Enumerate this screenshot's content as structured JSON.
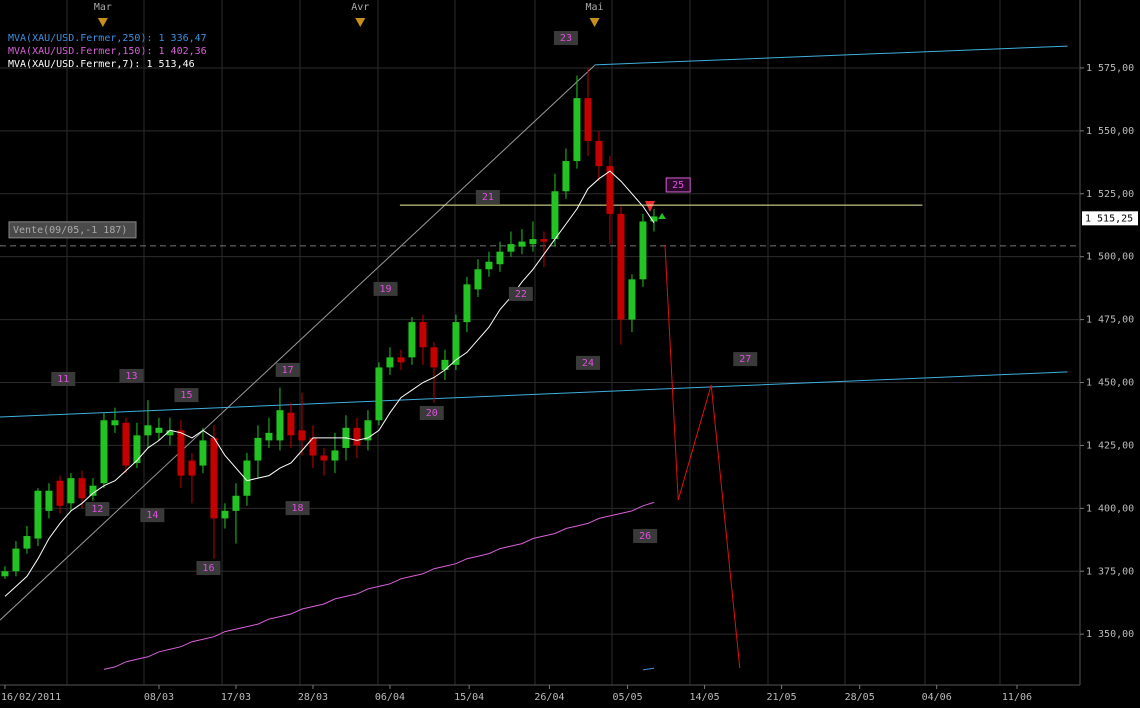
{
  "chart_data": {
    "type": "candlestick",
    "xlim": [
      -0.45,
      97.73
    ],
    "ylim": [
      1329.8,
      1602
    ],
    "yticks": [
      {
        "value": 1350,
        "label": "1 350,00"
      },
      {
        "value": 1375,
        "label": "1 375,00"
      },
      {
        "value": 1400,
        "label": "1 400,00"
      },
      {
        "value": 1425,
        "label": "1 425,00"
      },
      {
        "value": 1450,
        "label": "1 450,00"
      },
      {
        "value": 1475,
        "label": "1 475,00"
      },
      {
        "value": 1500,
        "label": "1 500,00"
      },
      {
        "value": 1525,
        "label": "1 525,00"
      },
      {
        "value": 1550,
        "label": "1 550,00"
      },
      {
        "value": 1575,
        "label": "1 575,00"
      }
    ],
    "xticks": [
      {
        "value": 0,
        "label": "16/02/2011"
      },
      {
        "value": 14,
        "label": "08/03"
      },
      {
        "value": 21,
        "label": "17/03"
      },
      {
        "value": 28,
        "label": "28/03"
      },
      {
        "value": 35,
        "label": "06/04"
      },
      {
        "value": 42.2,
        "label": "15/04"
      },
      {
        "value": 49.5,
        "label": "26/04"
      },
      {
        "value": 56.6,
        "label": "05/05"
      },
      {
        "value": 63.6,
        "label": "14/05"
      },
      {
        "value": 70.6,
        "label": "21/05"
      },
      {
        "value": 77.7,
        "label": "28/05"
      },
      {
        "value": 84.7,
        "label": "04/06"
      },
      {
        "value": 92,
        "label": "11/06"
      }
    ],
    "grid": true,
    "up_color": "#22c322",
    "down_color": "#c40000",
    "candles": {
      "open": [
        1373,
        1375,
        1384,
        1388,
        1399,
        1411,
        1402,
        1412,
        1405,
        1410,
        1433,
        1434,
        1418,
        1429,
        1430,
        1429,
        1431,
        1419,
        1417,
        1428,
        1396,
        1399,
        1405,
        1419,
        1427,
        1427,
        1438,
        1431,
        1428,
        1421,
        1419,
        1424,
        1432,
        1427,
        1435,
        1456,
        1460,
        1460,
        1474,
        1464,
        1455,
        1457,
        1474,
        1487,
        1495,
        1497,
        1502,
        1504,
        1505,
        1507,
        1507,
        1526,
        1538,
        1563,
        1546,
        1536,
        1517,
        1475,
        1491,
        1514
      ],
      "high": [
        1377,
        1387,
        1393,
        1408,
        1410,
        1413,
        1414,
        1415,
        1412,
        1438,
        1440,
        1436,
        1434,
        1443,
        1436,
        1436,
        1435,
        1422,
        1432,
        1433,
        1402,
        1410,
        1422,
        1433,
        1436,
        1448,
        1442,
        1446,
        1433,
        1424,
        1430,
        1437,
        1436,
        1439,
        1458,
        1464,
        1463,
        1476,
        1477,
        1466,
        1463,
        1477,
        1492,
        1499,
        1502,
        1506,
        1510,
        1511,
        1514,
        1510,
        1533,
        1543,
        1572,
        1575,
        1550,
        1540,
        1520,
        1493,
        1517,
        1519
      ],
      "low": [
        1372,
        1373,
        1382,
        1385,
        1396,
        1398,
        1399,
        1400,
        1403,
        1408,
        1430,
        1414,
        1416,
        1424,
        1427,
        1425,
        1408,
        1402,
        1414,
        1380,
        1392,
        1386,
        1401,
        1412,
        1424,
        1423,
        1424,
        1421,
        1416,
        1413,
        1414,
        1419,
        1420,
        1423,
        1433,
        1453,
        1455,
        1457,
        1457,
        1442,
        1451,
        1455,
        1470,
        1484,
        1492,
        1494,
        1500,
        1501,
        1502,
        1496,
        1504,
        1523,
        1535,
        1540,
        1530,
        1505,
        1465,
        1470,
        1488,
        1510
      ],
      "close": [
        1375,
        1384,
        1389,
        1407,
        1407,
        1401,
        1412,
        1404,
        1409,
        1435,
        1435,
        1417,
        1429,
        1433,
        1432,
        1431,
        1413,
        1413,
        1427,
        1396,
        1399,
        1405,
        1419,
        1428,
        1430,
        1439,
        1429,
        1427,
        1421,
        1419,
        1423,
        1432,
        1425,
        1435,
        1456,
        1460,
        1458,
        1474,
        1464,
        1456,
        1459,
        1474,
        1489,
        1495,
        1498,
        1502,
        1505,
        1506,
        1507,
        1506,
        1526,
        1538,
        1563,
        1546,
        1536,
        1517,
        1475,
        1491,
        1514,
        1516
      ]
    },
    "series": [
      {
        "name": "MVA(XAU/USD.Fermer,250): 1 336,47",
        "color": "#3d8fe0",
        "values": [
          null,
          null,
          null,
          null,
          null,
          null,
          null,
          null,
          null,
          null,
          null,
          null,
          null,
          null,
          null,
          null,
          null,
          null,
          null,
          null,
          null,
          null,
          null,
          null,
          null,
          null,
          null,
          null,
          null,
          null,
          null,
          null,
          null,
          null,
          null,
          null,
          null,
          null,
          null,
          null,
          null,
          null,
          null,
          null,
          null,
          null,
          null,
          null,
          null,
          null,
          null,
          null,
          null,
          null,
          null,
          null,
          null,
          null,
          1335.8,
          1336.47
        ]
      },
      {
        "name": "MVA(XAU/USD.Fermer,150): 1 402,36",
        "color": "#d860d8",
        "values": [
          null,
          null,
          null,
          null,
          null,
          null,
          null,
          null,
          null,
          1336,
          1337,
          1339,
          1340,
          1341,
          1343,
          1344,
          1345,
          1347,
          1348,
          1349,
          1351,
          1352,
          1353,
          1354,
          1356,
          1357,
          1358,
          1360,
          1361,
          1362,
          1364,
          1365,
          1366,
          1368,
          1369,
          1370,
          1372,
          1373,
          1374,
          1376,
          1377,
          1378,
          1380,
          1381,
          1382,
          1384,
          1385,
          1386,
          1388,
          1389,
          1390,
          1392,
          1393,
          1394,
          1396,
          1397,
          1398,
          1399,
          1401,
          1402.36
        ]
      },
      {
        "name": "MVA(XAU/USD.Fermer,7): 1 513,46",
        "color": "#ffffff",
        "values": [
          1365,
          1369,
          1373,
          1380,
          1388,
          1394,
          1399,
          1402,
          1406,
          1409,
          1411,
          1415,
          1419,
          1424,
          1427,
          1431,
          1430,
          1428,
          1431,
          1428,
          1421,
          1416,
          1411,
          1412,
          1413,
          1416,
          1418,
          1423,
          1428,
          1428,
          1428,
          1428,
          1427,
          1428,
          1431,
          1438,
          1444,
          1447,
          1450,
          1452,
          1455,
          1459,
          1462,
          1467,
          1472,
          1479,
          1484,
          1490,
          1495,
          1501,
          1507,
          1513,
          1519,
          1527,
          1531,
          1534,
          1530,
          1525,
          1520,
          1513.46
        ]
      }
    ],
    "trend_lines": [
      {
        "color": "#3fb0e0",
        "x": [
          53.6,
          96.6
        ],
        "values": [
          1576.2,
          1583.7
        ]
      },
      {
        "color": "#3fb0e0",
        "x": [
          -0.45,
          96.6
        ],
        "values": [
          1436.3,
          1454.2
        ]
      },
      {
        "color": "#9a9a9a",
        "x": [
          -0.45,
          53.6
        ],
        "values": [
          1355.6,
          1576
        ]
      },
      {
        "color": "#f0f0a0",
        "x": [
          35.9,
          83.4
        ],
        "values": [
          1520.5,
          1520.5
        ]
      },
      {
        "color": "#777777",
        "dashed": true,
        "x": [
          -0.45,
          97.73
        ],
        "values": [
          1504.3,
          1504.3
        ]
      },
      {
        "color": "#e01010",
        "x": [
          60,
          61.2,
          64.2,
          66.8
        ],
        "values": [
          1504.6,
          1403.3,
          1449,
          1336.5
        ]
      }
    ],
    "wave_labels": [
      {
        "text": "11",
        "x": 5.3,
        "y": 1451.4
      },
      {
        "text": "12",
        "x": 8.4,
        "y": 1399.7
      },
      {
        "text": "13",
        "x": 11.5,
        "y": 1452.6
      },
      {
        "text": "14",
        "x": 13.4,
        "y": 1397.3
      },
      {
        "text": "15",
        "x": 16.5,
        "y": 1445
      },
      {
        "text": "16",
        "x": 18.5,
        "y": 1376.3
      },
      {
        "text": "17",
        "x": 25.7,
        "y": 1455
      },
      {
        "text": "18",
        "x": 26.6,
        "y": 1400.1
      },
      {
        "text": "19",
        "x": 34.6,
        "y": 1487.2
      },
      {
        "text": "20",
        "x": 38.8,
        "y": 1437.9
      },
      {
        "text": "21",
        "x": 43.9,
        "y": 1523.7
      },
      {
        "text": "22",
        "x": 46.9,
        "y": 1485.2
      },
      {
        "text": "23",
        "x": 51,
        "y": 1586.9
      },
      {
        "text": "24",
        "x": 53,
        "y": 1457.8
      },
      {
        "text": "25",
        "x": 61.2,
        "y": 1528.5,
        "outlined": true
      },
      {
        "text": "26",
        "x": 58.2,
        "y": 1389
      },
      {
        "text": "27",
        "x": 67.3,
        "y": 1459.3
      }
    ],
    "month_markers": [
      {
        "label": "Mar",
        "x": 8.9
      },
      {
        "label": "Avr",
        "x": 32.3
      },
      {
        "label": "Mai",
        "x": 53.6
      }
    ],
    "price_tag": {
      "value": 1515.25,
      "label": "1 515,25"
    },
    "order_label": "Vente(09/05,-1 187)"
  }
}
